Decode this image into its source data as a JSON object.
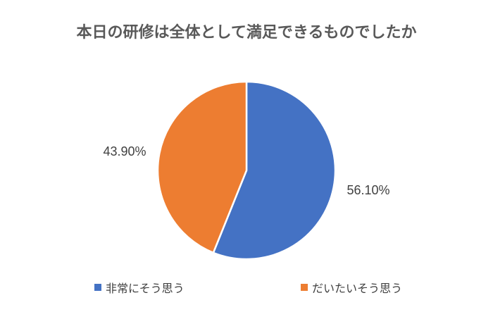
{
  "chart_data": {
    "type": "pie",
    "title": "本日の研修は全体として満足できるものでしたか",
    "categories": [
      "非常にそう思う",
      "だいたいそう思う"
    ],
    "values": [
      56.1,
      43.9
    ],
    "data_labels": [
      "56.10%",
      "43.90%"
    ],
    "colors": [
      "#4472C4",
      "#ED7D31"
    ],
    "legend_position": "bottom"
  }
}
